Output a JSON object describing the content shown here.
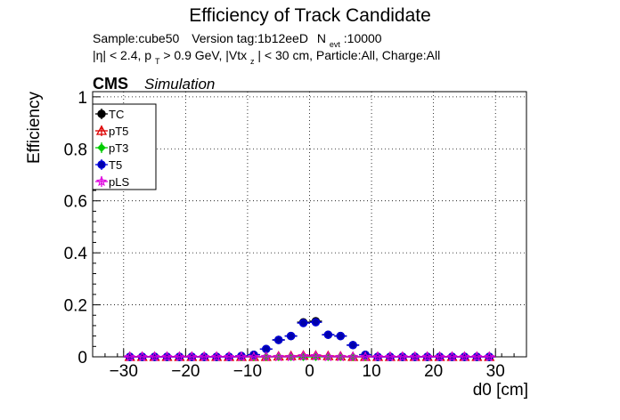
{
  "chart_data": {
    "type": "scatter",
    "title": "Efficiency of Track Candidate",
    "info_line1": {
      "sample": "Sample:cube50",
      "version": "Version tag:1b12eeD",
      "nevt_pre": "N",
      "nevt_sub": "evt",
      "nevt_val": ":10000"
    },
    "info_line2": {
      "eta": "|η| < 2.4, p",
      "pt_sub": "T",
      "pt_rest": " > 0.9 GeV, |Vtx",
      "vtx_sub": "z",
      "vtx_rest": "| < 30 cm, Particle:All, Charge:All"
    },
    "cms_label": "CMS",
    "simulation_label": "Simulation",
    "xlabel": "d0 [cm]",
    "ylabel": "Efficiency",
    "xlim": [
      -35,
      35
    ],
    "ylim": [
      0,
      1.02
    ],
    "xticks": [
      -30,
      -20,
      -10,
      0,
      10,
      20,
      30
    ],
    "yticks": [
      0,
      0.2,
      0.4,
      0.6,
      0.8,
      1
    ],
    "xtick_labels": [
      "−30",
      "−20",
      "−10",
      "0",
      "10",
      "20",
      "30"
    ],
    "ytick_labels": [
      "0",
      "0.2",
      "0.4",
      "0.6",
      "0.8",
      "1"
    ],
    "grid": true,
    "legend_position": "top-left",
    "bin_width": 2,
    "x": [
      -29,
      -27,
      -25,
      -23,
      -21,
      -19,
      -17,
      -15,
      -13,
      -11,
      -9,
      -7,
      -5,
      -3,
      -1,
      1,
      3,
      5,
      7,
      9,
      11,
      13,
      15,
      17,
      19,
      21,
      23,
      25,
      27,
      29
    ],
    "series": [
      {
        "name": "TC",
        "color": "#000000",
        "fill": "#000000",
        "marker": "circle",
        "values": [
          0,
          0,
          0,
          0,
          0,
          0,
          0,
          0,
          0,
          0.003,
          0.008,
          0.03,
          0.065,
          0.08,
          0.133,
          0.137,
          0.085,
          0.08,
          0.045,
          0.008,
          0,
          0,
          0,
          0,
          0,
          0,
          0,
          0,
          0,
          0
        ],
        "errors": [
          0,
          0,
          0,
          0,
          0,
          0,
          0,
          0,
          0,
          0.002,
          0.003,
          0.006,
          0.008,
          0.008,
          0.01,
          0.01,
          0.008,
          0.008,
          0.006,
          0.003,
          0,
          0,
          0,
          0,
          0,
          0,
          0,
          0,
          0,
          0
        ]
      },
      {
        "name": "pT5",
        "color": "#dd0000",
        "fill": "none",
        "marker": "triangle",
        "values": [
          0,
          0,
          0,
          0,
          0,
          0,
          0,
          0,
          0,
          0,
          0,
          0,
          0.002,
          0.003,
          0.005,
          0.005,
          0.003,
          0.002,
          0,
          0,
          0,
          0,
          0,
          0,
          0,
          0,
          0,
          0,
          0,
          0
        ]
      },
      {
        "name": "pT3",
        "color": "#00cc00",
        "fill": "#00cc00",
        "marker": "diamond",
        "values": [
          0,
          0,
          0,
          0,
          0,
          0,
          0,
          0,
          0,
          0,
          0,
          0,
          0,
          0,
          0,
          0,
          0,
          0,
          0,
          0,
          0,
          0,
          0,
          0,
          0,
          0,
          0,
          0,
          0,
          0
        ]
      },
      {
        "name": "T5",
        "color": "#0000dd",
        "fill": "#0000aa",
        "marker": "circle-open",
        "values": [
          0,
          0,
          0,
          0,
          0,
          0,
          0,
          0,
          0,
          0.003,
          0.008,
          0.03,
          0.065,
          0.08,
          0.13,
          0.133,
          0.085,
          0.08,
          0.045,
          0.008,
          0,
          0,
          0,
          0,
          0,
          0,
          0,
          0,
          0,
          0
        ]
      },
      {
        "name": "pLS",
        "color": "#dd00dd",
        "fill": "none",
        "marker": "star",
        "values": [
          0,
          0,
          0,
          0,
          0,
          0,
          0,
          0,
          0,
          0,
          0,
          0,
          0,
          0,
          0.003,
          0.003,
          0,
          0,
          0,
          0,
          0,
          0,
          0,
          0,
          0,
          0,
          0,
          0,
          0,
          0
        ]
      }
    ]
  }
}
